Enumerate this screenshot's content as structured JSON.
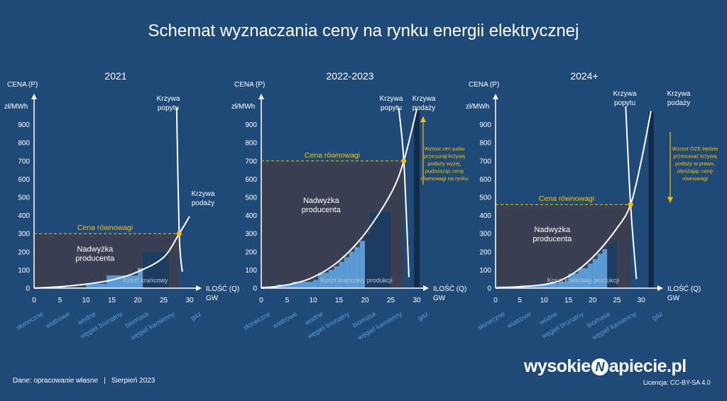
{
  "title": "Schemat wyznaczania ceny na rynku energii elektrycznej",
  "footer": {
    "source": "Dane: opracowanie własne",
    "date": "Sierpień 2023",
    "brand_left": "wysokie",
    "brand_mark": "N",
    "brand_right": "apiecie.pl",
    "license": "Licencja: CC-BY-SA 4.0"
  },
  "colors": {
    "background": "#1f4a78",
    "surplus": "#3b3f52",
    "steps": "#5b9bd5",
    "steps_dark": "#1c3c62",
    "gas": "#13294a",
    "curve": "#ffffff",
    "equilibrium": "#ffc000",
    "category_text": "#5b9bd5"
  },
  "chart_data": [
    {
      "type": "area",
      "title": "2021",
      "ylabel": "CENA (P)",
      "yunit": "zł/MWh",
      "xlabel": "ILOŚĆ (Q)",
      "xunit": "GW",
      "xlim": [
        0,
        30
      ],
      "ylim": [
        0,
        1000
      ],
      "xticks": [
        0,
        5,
        10,
        15,
        20,
        25,
        30
      ],
      "yticks": [
        0,
        100,
        200,
        300,
        400,
        500,
        600,
        700,
        800,
        900
      ],
      "categories": [
        "słoneczne",
        "wiatrowe",
        "wodne",
        "węgiel brunatny",
        "biomasa",
        "węgiel kamienny",
        "gaz"
      ],
      "equilibrium": {
        "q": 28,
        "p": 300,
        "label": "Cena równowagi"
      },
      "supply_label": "Krzywa podaży",
      "demand_label": "Krzywa popytu",
      "surplus_label": "Nadwyżka producenta",
      "cost_label": "Koszt krańcowy",
      "supply_curve": [
        [
          0,
          0
        ],
        [
          5,
          8
        ],
        [
          10,
          22
        ],
        [
          15,
          45
        ],
        [
          20,
          90
        ],
        [
          25,
          170
        ],
        [
          28,
          300
        ],
        [
          30,
          395
        ]
      ],
      "demand_curve": [
        [
          27.5,
          995
        ],
        [
          28,
          300
        ],
        [
          28.6,
          90
        ]
      ],
      "steps": [
        {
          "q0": 0,
          "q1": 10,
          "p": 5
        },
        {
          "q0": 10,
          "q1": 14,
          "p": 25
        },
        {
          "q0": 14,
          "q1": 20,
          "p": 70
        },
        {
          "q0": 20,
          "q1": 21,
          "p": 110
        }
      ],
      "dark_steps": [
        {
          "q0": 21,
          "q1": 26,
          "p": 200
        }
      ],
      "gas": null
    },
    {
      "type": "area",
      "title": "2022-2023",
      "ylabel": "CENA (P)",
      "yunit": "zł/MWh",
      "xlabel": "ILOŚĆ (Q)",
      "xunit": "GW",
      "xlim": [
        0,
        30
      ],
      "ylim": [
        0,
        1000
      ],
      "xticks": [
        0,
        5,
        10,
        15,
        20,
        25,
        30
      ],
      "yticks": [
        0,
        100,
        200,
        300,
        400,
        500,
        600,
        700,
        800,
        900
      ],
      "categories": [
        "słoneczne",
        "wiatrowe",
        "wodne",
        "węgiel brunatny",
        "biomasa",
        "węgiel kamienny",
        "gaz"
      ],
      "equilibrium": {
        "q": 27.5,
        "p": 700,
        "label": "Cena równowagi"
      },
      "supply_label": "Krzywa podaży",
      "demand_label": "Krzywa popytu",
      "surplus_label": "Nadwyżka producenta",
      "cost_label": "Koszt krańcowy produkcji",
      "annotation": "Wzrost cen paliw przesunął krzywą podaży wyżej, podnosząc cenę równowagi na rynku",
      "arrow": {
        "direction": "up",
        "from": 570,
        "to": 945
      },
      "supply_curve": [
        [
          0,
          0
        ],
        [
          5,
          18
        ],
        [
          10,
          60
        ],
        [
          15,
          150
        ],
        [
          20,
          300
        ],
        [
          25,
          520
        ],
        [
          27.5,
          700
        ],
        [
          30,
          985
        ]
      ],
      "demand_curve": [
        [
          26.5,
          995
        ],
        [
          27.5,
          700
        ],
        [
          28.5,
          60
        ]
      ],
      "steps": [
        {
          "q0": 0,
          "q1": 3,
          "p": 10
        },
        {
          "q0": 3,
          "q1": 6,
          "p": 20
        },
        {
          "q0": 6,
          "q1": 10,
          "p": 35
        },
        {
          "q0": 10,
          "q1": 11,
          "p": 45
        },
        {
          "q0": 11,
          "q1": 13,
          "p": 85
        },
        {
          "q0": 13,
          "q1": 14,
          "p": 100
        },
        {
          "q0": 14,
          "q1": 15,
          "p": 120
        },
        {
          "q0": 15,
          "q1": 16,
          "p": 145
        },
        {
          "q0": 16,
          "q1": 17,
          "p": 170
        },
        {
          "q0": 17,
          "q1": 18,
          "p": 200
        },
        {
          "q0": 18,
          "q1": 19,
          "p": 225
        },
        {
          "q0": 19,
          "q1": 20,
          "p": 260
        }
      ],
      "dark_steps": [
        {
          "q0": 20,
          "q1": 21,
          "p": 290
        },
        {
          "q0": 21,
          "q1": 25,
          "p": 420
        }
      ],
      "gas": {
        "q0": 29.5,
        "q1": 30,
        "p": 980
      }
    },
    {
      "type": "area",
      "title": "2024+",
      "ylabel": "CENA (P)",
      "yunit": "zł/MWh",
      "xlabel": "ILOŚĆ (Q)",
      "xunit": "GW",
      "xlim": [
        0,
        30
      ],
      "ylim": [
        0,
        1000
      ],
      "xticks": [
        0,
        5,
        10,
        15,
        20,
        25,
        30
      ],
      "yticks": [
        0,
        100,
        200,
        300,
        400,
        500,
        600,
        700,
        800,
        900
      ],
      "categories": [
        "słoneczne",
        "wiatrowe",
        "wodne",
        "węgiel brunatny",
        "biomasa",
        "węgiel kamienny",
        "gaz"
      ],
      "equilibrium": {
        "q": 27.8,
        "p": 460,
        "label": "Cena równowagi"
      },
      "supply_label": "Krzywa podaży",
      "demand_label": "Krzywa popytu",
      "surplus_label": "Nadwyżka producenta",
      "cost_label": "Koszt krańcowy produkcji",
      "annotation": "Wzrost OZE będzie przesuwać krzywą podaży w prawo, obniżając cenę równowagi",
      "arrow": {
        "direction": "down",
        "from": 860,
        "to": 470
      },
      "supply_curve": [
        [
          0,
          0
        ],
        [
          10,
          20
        ],
        [
          15,
          65
        ],
        [
          20,
          170
        ],
        [
          25,
          330
        ],
        [
          27.8,
          460
        ],
        [
          30,
          700
        ],
        [
          32,
          975
        ]
      ],
      "demand_curve": [
        [
          26.8,
          1000
        ],
        [
          27.8,
          460
        ],
        [
          29,
          50
        ]
      ],
      "steps": [
        {
          "q0": 0,
          "q1": 5,
          "p": 10
        },
        {
          "q0": 5,
          "q1": 9,
          "p": 15
        },
        {
          "q0": 9,
          "q1": 11,
          "p": 20
        },
        {
          "q0": 11,
          "q1": 13,
          "p": 28
        },
        {
          "q0": 13,
          "q1": 15,
          "p": 35
        },
        {
          "q0": 15,
          "q1": 17,
          "p": 80
        },
        {
          "q0": 17,
          "q1": 19,
          "p": 110
        },
        {
          "q0": 19,
          "q1": 20,
          "p": 135
        },
        {
          "q0": 20,
          "q1": 21,
          "p": 160
        },
        {
          "q0": 21,
          "q1": 22,
          "p": 190
        },
        {
          "q0": 22,
          "q1": 23,
          "p": 215
        }
      ],
      "dark_steps": [
        {
          "q0": 23,
          "q1": 24,
          "p": 240
        },
        {
          "q0": 24,
          "q1": 25,
          "p": 255
        }
      ],
      "gas": {
        "q0": 31.5,
        "q1": 32,
        "p": 970
      }
    }
  ]
}
